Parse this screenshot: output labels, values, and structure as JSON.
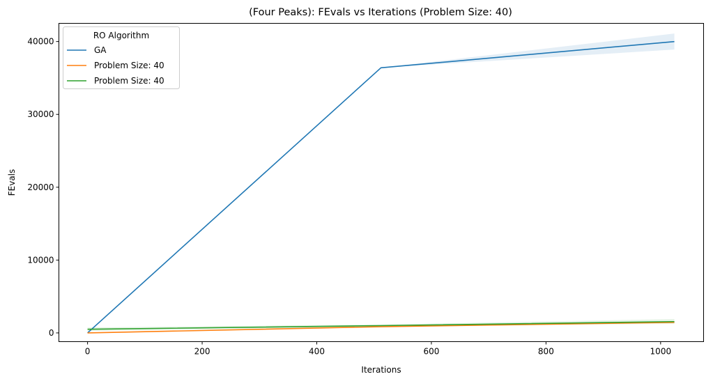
{
  "chart_data": {
    "type": "line",
    "title": "(Four Peaks): FEvals vs Iterations (Problem Size: 40)",
    "xlabel": "Iterations",
    "ylabel": "FEvals",
    "xlim": [
      -50,
      1075
    ],
    "ylim": [
      -1200,
      42500
    ],
    "xticks": [
      0,
      200,
      400,
      600,
      800,
      1000
    ],
    "yticks": [
      0,
      10000,
      20000,
      30000,
      40000
    ],
    "grid": false,
    "legend": {
      "title": "RO Algorithm",
      "placement": "top-left"
    },
    "series": [
      {
        "name": "GA",
        "color": "#1f77b4",
        "x": [
          0,
          512,
          1024
        ],
        "y": [
          0,
          36400,
          40000
        ],
        "band_low": [
          0,
          36400,
          38900
        ],
        "band_high": [
          0,
          36400,
          41100
        ]
      },
      {
        "name": "Problem Size: 40",
        "color": "#ff7f0e",
        "x": [
          0,
          512,
          1024
        ],
        "y": [
          0,
          850,
          1450
        ],
        "band_low": [
          0,
          800,
          1350
        ],
        "band_high": [
          0,
          900,
          1550
        ]
      },
      {
        "name": "Problem Size: 40",
        "color": "#2ca02c",
        "x": [
          0,
          512,
          1024
        ],
        "y": [
          500,
          1000,
          1550
        ],
        "band_low": [
          250,
          850,
          1250
        ],
        "band_high": [
          750,
          1150,
          1900
        ]
      }
    ]
  }
}
